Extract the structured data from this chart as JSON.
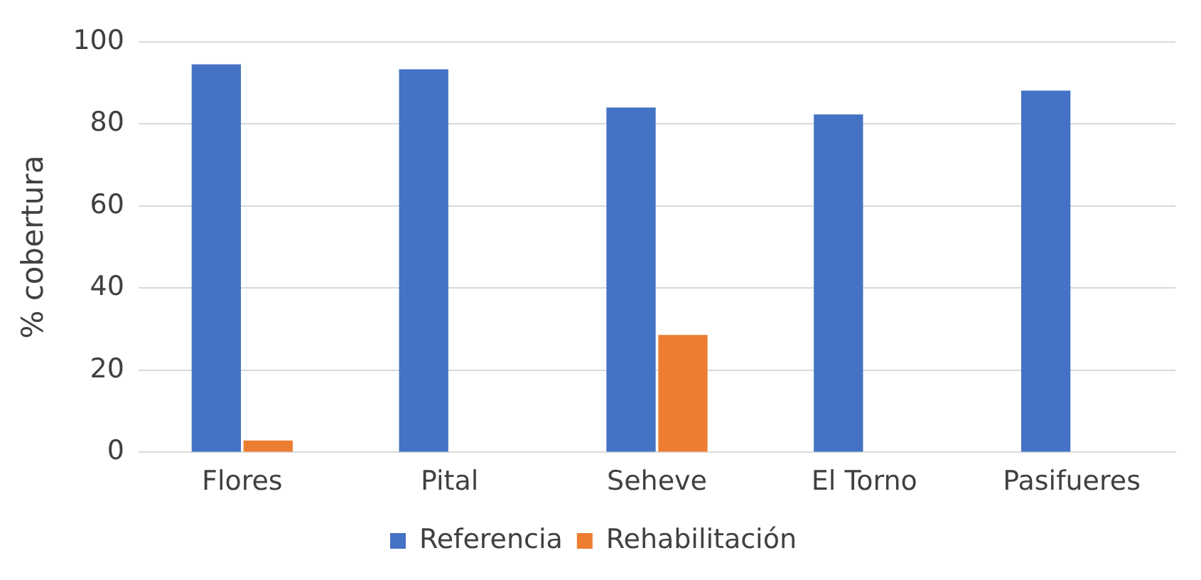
{
  "chart_data": {
    "type": "bar",
    "ylabel": "% cobertura",
    "categories": [
      "Flores",
      "Pital",
      "Seheve",
      "El Torno",
      "Pasifueres"
    ],
    "series": [
      {
        "name": "Referencia",
        "color": "#4472c4",
        "values": [
          94.5,
          93.3,
          84,
          82.3,
          88.1
        ]
      },
      {
        "name": "Rehabilitación",
        "color": "#ed7d31",
        "values": [
          2.9,
          0,
          28.6,
          0,
          0
        ]
      }
    ],
    "ylim": [
      0,
      100
    ],
    "yticks": [
      0,
      20,
      40,
      60,
      80,
      100
    ],
    "grid": "y",
    "legend": "bottom"
  }
}
